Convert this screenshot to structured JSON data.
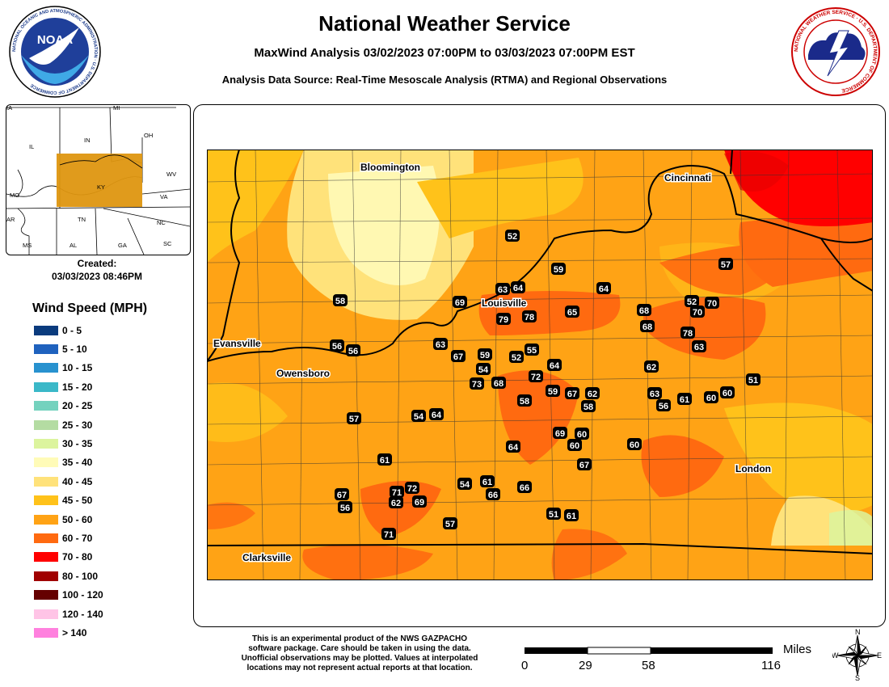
{
  "header": {
    "title": "National Weather Service",
    "subtitle": "MaxWind Analysis 03/02/2023 07:00PM to 03/03/2023 07:00PM EST",
    "source": "Analysis Data Source: Real-Time Mesoscale Analysis (RTMA) and Regional Observations"
  },
  "logos": {
    "noaa": "NOAA",
    "noaa_ring": "NATIONAL OCEANIC AND ATMOSPHERIC ADMINISTRATION · U.S. DEPARTMENT OF COMMERCE",
    "nws_ring": "NATIONAL WEATHER SERVICE · U.S. DEPARTMENT OF COMMERCE"
  },
  "inset": {
    "labels": [
      "IA",
      "MI",
      "IN",
      "OH",
      "IL",
      "WV",
      "KY",
      "VA",
      "MO",
      "TN",
      "NC",
      "AR",
      "MS",
      "AL",
      "GA",
      "SC"
    ],
    "highlight_color": "#de9610"
  },
  "created": {
    "label": "Created:",
    "value": "03/03/2023 08:46PM"
  },
  "legend": {
    "title": "Wind Speed (MPH)",
    "items": [
      {
        "label": "0 - 5",
        "color": "#0a3b7d"
      },
      {
        "label": "5 - 10",
        "color": "#1f62be"
      },
      {
        "label": "10 - 15",
        "color": "#2892cf"
      },
      {
        "label": "15 - 20",
        "color": "#3ab8c8"
      },
      {
        "label": "20 - 25",
        "color": "#74d2be"
      },
      {
        "label": "25 - 30",
        "color": "#b4dca2"
      },
      {
        "label": "30 - 35",
        "color": "#dcf49e"
      },
      {
        "label": "35 - 40",
        "color": "#fffbb8"
      },
      {
        "label": "40 - 45",
        "color": "#ffe27a"
      },
      {
        "label": "45 - 50",
        "color": "#ffc21a"
      },
      {
        "label": "50 - 60",
        "color": "#ffa315"
      },
      {
        "label": "60 - 70",
        "color": "#ff6a10"
      },
      {
        "label": "70 - 80",
        "color": "#ff0000"
      },
      {
        "label": "80 - 100",
        "color": "#a00000"
      },
      {
        "label": "100 - 120",
        "color": "#650000"
      },
      {
        "label": "120 - 140",
        "color": "#ffc4e6"
      },
      {
        "label": "> 140",
        "color": "#ff80de"
      }
    ]
  },
  "map": {
    "cities": [
      "Bloomington",
      "Cincinnati",
      "Louisville",
      "Evansville",
      "Owensboro",
      "London",
      "Clarksville"
    ],
    "observations": [
      "52",
      "59",
      "63",
      "64",
      "64",
      "57",
      "69",
      "58",
      "52",
      "70",
      "68",
      "70",
      "79",
      "78",
      "65",
      "68",
      "78",
      "63",
      "56",
      "56",
      "63",
      "67",
      "59",
      "52",
      "55",
      "64",
      "72",
      "54",
      "62",
      "73",
      "68",
      "59",
      "58",
      "67",
      "62",
      "58",
      "63",
      "61",
      "60",
      "60",
      "51",
      "56",
      "57",
      "54",
      "64",
      "69",
      "60",
      "60",
      "64",
      "60",
      "61",
      "67",
      "54",
      "61",
      "71",
      "72",
      "66",
      "66",
      "67",
      "56",
      "62",
      "69",
      "51",
      "61",
      "57",
      "71"
    ],
    "colors": {
      "c35": "#fffbb8",
      "c40": "#ffe27a",
      "c45": "#ffc21a",
      "c50": "#ffa315",
      "c60": "#ff6a10",
      "c70": "#ff0000",
      "c30": "#dcf49e"
    }
  },
  "footer": {
    "note": [
      "This is an experimental product of the NWS GAZPACHO",
      "software package. Care should be taken in using the data.",
      "Unofficial observations may be plotted. Values at interpolated",
      "locations may not represent actual reports at that location."
    ],
    "scale_unit": "Miles",
    "scale_labels": [
      "0",
      "29",
      "58",
      "116"
    ],
    "compass": [
      "N",
      "S",
      "E",
      "W"
    ]
  }
}
